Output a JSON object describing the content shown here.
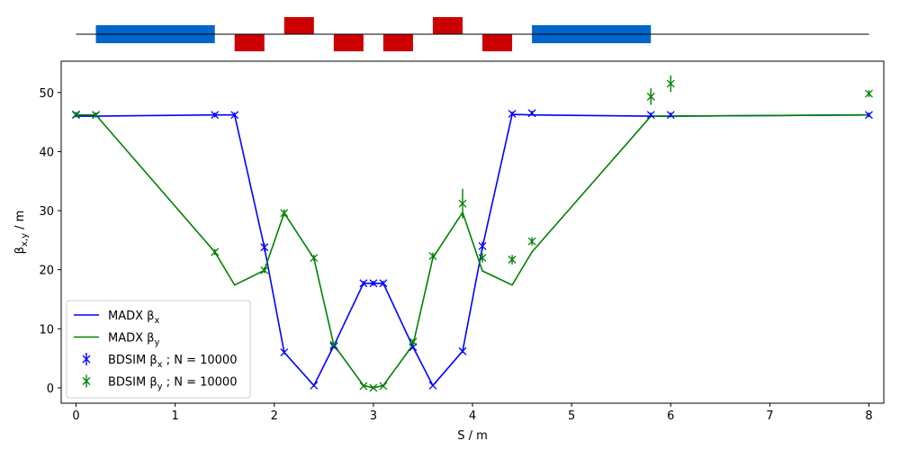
{
  "chart_data": {
    "type": "line",
    "xlabel": "S / m",
    "ylabel": "β_x,y / m",
    "xlim": [
      -0.15,
      8.15
    ],
    "ylim": [
      -2.6,
      55.3
    ],
    "x_ticks": [
      0,
      1,
      2,
      3,
      4,
      5,
      6,
      7,
      8
    ],
    "y_ticks": [
      0,
      10,
      20,
      30,
      40,
      50
    ],
    "grid": false,
    "legend_position": "lower-left",
    "colors": {
      "beta_x": "#0000ff",
      "beta_y": "#008000",
      "dipole": "#0066cc",
      "quadrupole": "#cc0000"
    },
    "series": [
      {
        "name": "MADX βx",
        "kind": "line",
        "color": "#0000ff",
        "x": [
          0.0,
          0.2,
          1.4,
          1.6,
          1.9,
          2.1,
          2.4,
          2.6,
          2.9,
          3.0,
          3.1,
          3.4,
          3.6,
          3.9,
          4.1,
          4.4,
          4.6,
          5.8,
          6.0,
          8.0
        ],
        "y": [
          46.0,
          46.0,
          46.2,
          46.2,
          23.8,
          6.0,
          0.4,
          7.1,
          17.7,
          17.7,
          17.7,
          6.9,
          0.4,
          6.2,
          23.8,
          46.3,
          46.2,
          46.0,
          46.0,
          46.2
        ]
      },
      {
        "name": "MADX βy",
        "kind": "line",
        "color": "#008000",
        "x": [
          0.0,
          0.2,
          1.4,
          1.6,
          1.9,
          2.1,
          2.4,
          2.6,
          2.9,
          3.0,
          3.1,
          3.4,
          3.6,
          3.9,
          4.1,
          4.4,
          4.6,
          5.8,
          6.0,
          8.0
        ],
        "y": [
          46.2,
          46.2,
          23.0,
          17.4,
          19.9,
          29.6,
          21.9,
          7.3,
          0.4,
          0.0,
          0.4,
          7.3,
          22.0,
          29.7,
          19.8,
          17.4,
          23.0,
          46.0,
          46.0,
          46.2
        ]
      },
      {
        "name": "BDSIM βx ; N = 10000",
        "kind": "errorbar",
        "color": "#0000ff",
        "x": [
          0.0,
          0.2,
          1.4,
          1.6,
          1.9,
          2.1,
          2.4,
          2.6,
          2.9,
          3.0,
          3.1,
          3.4,
          3.6,
          3.9,
          4.1,
          4.4,
          4.6,
          5.8,
          6.0,
          8.0
        ],
        "y": [
          46.2,
          46.2,
          46.2,
          46.2,
          23.8,
          6.0,
          0.4,
          7.0,
          17.7,
          17.7,
          17.7,
          6.9,
          0.4,
          6.2,
          24.0,
          46.4,
          46.5,
          46.2,
          46.2,
          46.2
        ],
        "err": [
          0.4,
          0.4,
          0.4,
          0.4,
          0.7,
          0.3,
          0.2,
          0.3,
          0.4,
          0.4,
          0.4,
          0.3,
          0.2,
          0.3,
          0.7,
          0.4,
          0.4,
          0.4,
          0.4,
          0.4
        ]
      },
      {
        "name": "BDSIM βy ; N = 10000",
        "kind": "errorbar",
        "color": "#008000",
        "x": [
          0.0,
          0.2,
          1.4,
          1.9,
          2.1,
          2.4,
          2.6,
          2.9,
          3.0,
          3.1,
          3.4,
          3.6,
          3.9,
          4.1,
          4.4,
          4.6,
          5.8,
          6.0,
          8.0
        ],
        "y": [
          46.3,
          46.2,
          23.0,
          19.9,
          29.6,
          22.0,
          7.3,
          0.3,
          0.0,
          0.3,
          7.8,
          22.3,
          31.2,
          22.0,
          21.7,
          24.8,
          49.3,
          51.5,
          49.8
        ],
        "err": [
          0.4,
          0.4,
          0.5,
          0.5,
          0.6,
          0.5,
          0.3,
          0.2,
          0.2,
          0.2,
          0.4,
          0.6,
          2.5,
          0.8,
          0.8,
          0.7,
          1.4,
          1.4,
          0.6
        ]
      }
    ],
    "legend": [
      {
        "label": "MADX β",
        "sub": "x",
        "suffix": "",
        "kind": "line",
        "color": "#0000ff"
      },
      {
        "label": "MADX β",
        "sub": "y",
        "suffix": "",
        "kind": "line",
        "color": "#008000"
      },
      {
        "label": "BDSIM β",
        "sub": "x",
        "suffix": " ; N = 10000",
        "kind": "errorbar",
        "color": "#0000ff"
      },
      {
        "label": "BDSIM β",
        "sub": "y",
        "suffix": " ; N = 10000",
        "kind": "errorbar",
        "color": "#008000"
      }
    ],
    "machine_elements": [
      {
        "type": "dipole",
        "s_start": 0.2,
        "s_end": 1.4,
        "side": "center"
      },
      {
        "type": "quadrupole",
        "s_start": 1.6,
        "s_end": 1.9,
        "side": "below"
      },
      {
        "type": "quadrupole",
        "s_start": 2.1,
        "s_end": 2.4,
        "side": "above"
      },
      {
        "type": "quadrupole",
        "s_start": 2.6,
        "s_end": 2.9,
        "side": "below"
      },
      {
        "type": "quadrupole",
        "s_start": 3.1,
        "s_end": 3.4,
        "side": "below"
      },
      {
        "type": "quadrupole",
        "s_start": 3.6,
        "s_end": 3.9,
        "side": "above"
      },
      {
        "type": "quadrupole",
        "s_start": 4.1,
        "s_end": 4.4,
        "side": "below"
      },
      {
        "type": "dipole",
        "s_start": 4.6,
        "s_end": 5.8,
        "side": "center"
      }
    ],
    "beamline_range": [
      0.0,
      8.0
    ]
  }
}
